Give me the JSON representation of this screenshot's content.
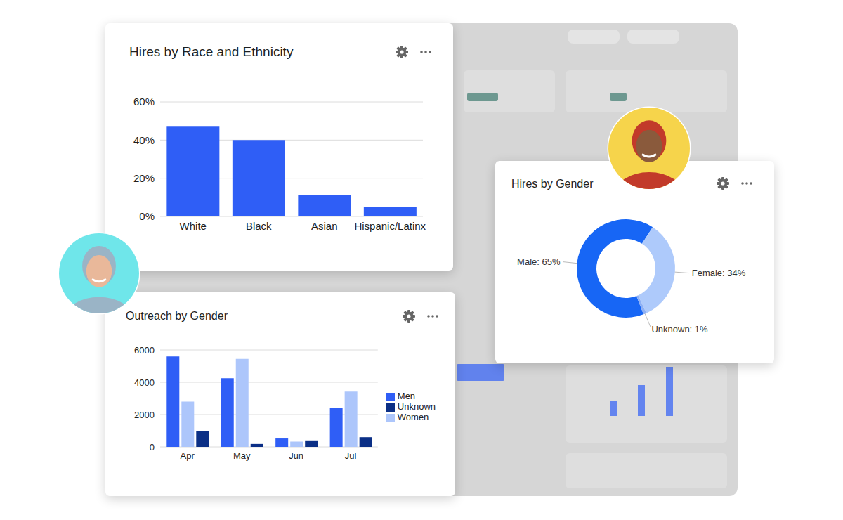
{
  "chart_data": [
    {
      "type": "bar",
      "title": "Hires by Race and Ethnicity",
      "categories": [
        "White",
        "Black",
        "Asian",
        "Hispanic/Latinx"
      ],
      "values": [
        47,
        40,
        11,
        5
      ],
      "color": "#2f5ef6",
      "ylim": [
        0,
        60
      ],
      "yticks": [
        {
          "value": 0,
          "label": "0%"
        },
        {
          "value": 20,
          "label": "20%"
        },
        {
          "value": 40,
          "label": "40%"
        },
        {
          "value": 60,
          "label": "60%"
        }
      ],
      "grid": true
    },
    {
      "type": "pie",
      "title": "Hires by Gender",
      "categories": [
        "Male",
        "Female",
        "Unknown"
      ],
      "values": [
        65,
        34,
        1
      ],
      "value_labels": [
        "Male: 65%",
        "Female: 34%",
        "Unknown: 1%"
      ],
      "colors": [
        "#1766f5",
        "#aecafb",
        "#8eb0f5"
      ],
      "data_labels": true
    },
    {
      "type": "bar",
      "title": "Outreach by Gender",
      "categories": [
        "Apr",
        "May",
        "Jun",
        "Jul"
      ],
      "series": [
        {
          "name": "Men",
          "color": "#2f5ef6",
          "values": [
            5600,
            4250,
            520,
            2420
          ]
        },
        {
          "name": "Women",
          "color": "#adc6fb",
          "values": [
            2800,
            5450,
            330,
            3420
          ]
        },
        {
          "name": "Unknown",
          "color": "#0b2f86",
          "values": [
            980,
            180,
            400,
            600
          ]
        }
      ],
      "ylim": [
        0,
        6000
      ],
      "yticks": [
        0,
        2000,
        4000,
        6000
      ],
      "grid": true,
      "legend": "right"
    }
  ]
}
